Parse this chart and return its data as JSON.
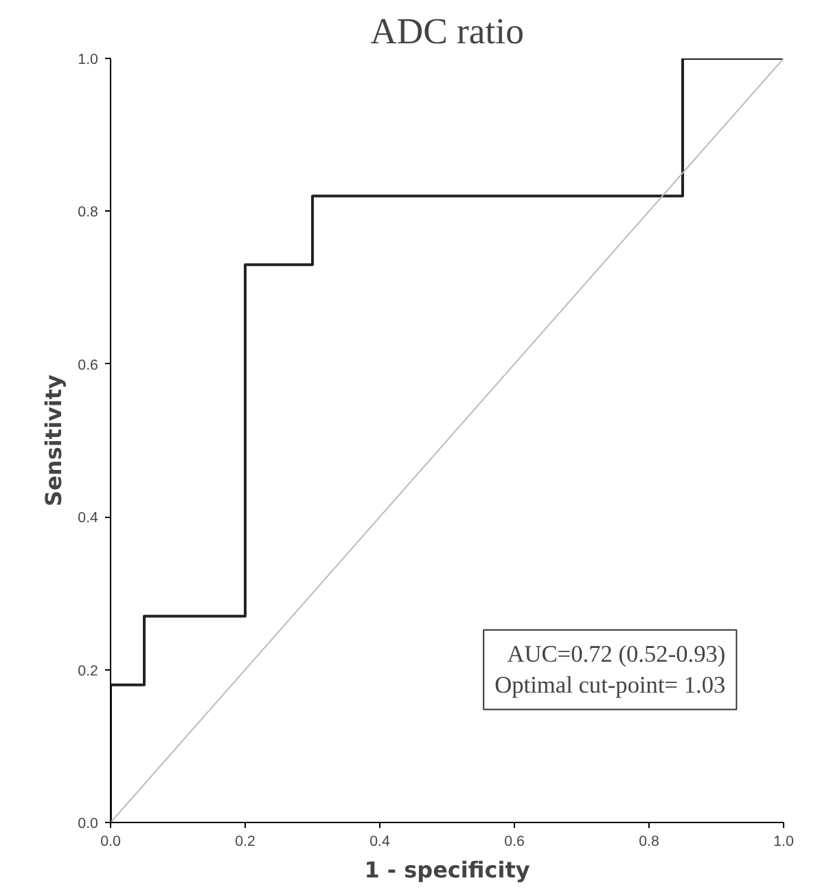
{
  "chart_data": {
    "type": "line",
    "title": "ADC ratio",
    "xlabel": "1 - specificity",
    "ylabel": "Sensitivity",
    "xlim": [
      0,
      1
    ],
    "ylim": [
      0,
      1
    ],
    "xticks": [
      {
        "value": 0,
        "label": "0.0"
      },
      {
        "value": 0.2,
        "label": "0.2"
      },
      {
        "value": 0.4,
        "label": "0.4"
      },
      {
        "value": 0.6,
        "label": "0.6"
      },
      {
        "value": 0.8,
        "label": "0.8"
      },
      {
        "value": 1,
        "label": "1.0"
      }
    ],
    "yticks": [
      {
        "value": 0,
        "label": "0.0"
      },
      {
        "value": 0.2,
        "label": "0.2"
      },
      {
        "value": 0.4,
        "label": "0.4"
      },
      {
        "value": 0.6,
        "label": "0.6"
      },
      {
        "value": 0.8,
        "label": "0.8"
      },
      {
        "value": 1,
        "label": "1.0"
      }
    ],
    "grid": false,
    "marker": "none",
    "line_style": "solid",
    "series": [
      {
        "color": "#222222",
        "x": [
          0,
          0,
          0.05,
          0.05,
          0.2,
          0.2,
          0.3,
          0.3,
          0.85,
          0.85,
          1.0
        ],
        "values": [
          0,
          0.18,
          0.18,
          0.27,
          0.27,
          0.73,
          0.73,
          0.82,
          0.82,
          1.0,
          1.0
        ]
      },
      {
        "color": "#bbbbbb",
        "x": [
          0,
          1
        ],
        "values": [
          0,
          1
        ]
      }
    ],
    "annotations": [
      "AUC=0.72 (0.52-0.93)",
      "Optimal cut-point= 1.03"
    ]
  }
}
